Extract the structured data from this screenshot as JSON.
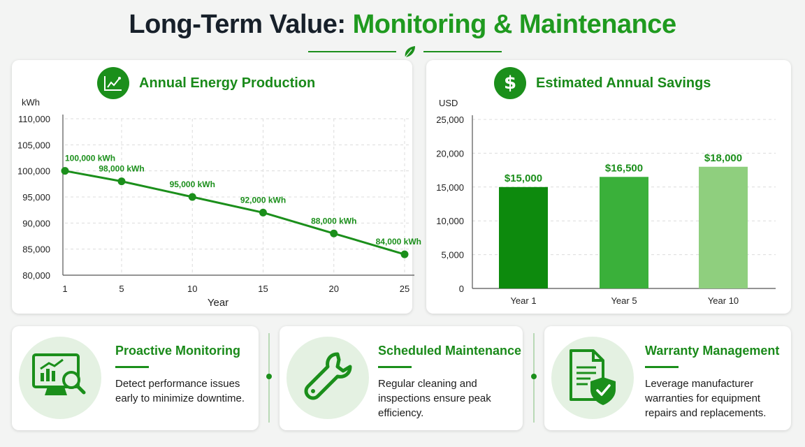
{
  "title": {
    "part1": "Long-Term Value:",
    "part2": "Monitoring & Maintenance"
  },
  "colors": {
    "accent": "#1b8f1b",
    "dark_text": "#17202a",
    "bar1": "#0d8a0d",
    "bar2": "#3ab03a",
    "bar3": "#8fcf7e"
  },
  "energy_card": {
    "title": "Annual Energy Production",
    "icon": "line-chart-icon"
  },
  "savings_card": {
    "title": "Estimated Annual Savings",
    "icon": "dollar-icon"
  },
  "features": [
    {
      "title": "Proactive Monitoring",
      "text": "Detect performance issues early to minimize downtime.",
      "icon": "monitor-magnifier-icon"
    },
    {
      "title": "Scheduled Maintenance",
      "text": "Regular cleaning and inspections ensure peak efficiency.",
      "icon": "wrench-icon"
    },
    {
      "title": "Warranty Management",
      "text": "Leverage manufacturer warranties for equipment repairs and replacements.",
      "icon": "document-shield-icon"
    }
  ],
  "chart_data": [
    {
      "type": "line",
      "title": "Annual Energy Production",
      "xlabel": "Year",
      "ylabel": "kWh",
      "x": [
        1,
        5,
        10,
        15,
        20,
        25
      ],
      "y": [
        100000,
        98000,
        95000,
        92000,
        88000,
        84000
      ],
      "point_labels": [
        "100,000 kWh",
        "98,000 kWh",
        "95,000 kWh",
        "92,000 kWh",
        "88,000 kWh",
        "84,000 kWh"
      ],
      "ylim": [
        80000,
        110000
      ],
      "yticks": [
        "80,000",
        "85,000",
        "90,000",
        "95,000",
        "100,000",
        "105,000",
        "110,000"
      ],
      "xticks": [
        "1",
        "5",
        "10",
        "15",
        "20",
        "25"
      ],
      "grid": true
    },
    {
      "type": "bar",
      "title": "Estimated Annual Savings",
      "xlabel": "",
      "ylabel": "USD",
      "categories": [
        "Year 1",
        "Year 5",
        "Year 10"
      ],
      "values": [
        15000,
        16500,
        18000
      ],
      "value_labels": [
        "$15,000",
        "$16,500",
        "$18,000"
      ],
      "ylim": [
        0,
        25000
      ],
      "yticks": [
        "0",
        "5,000",
        "10,000",
        "15,000",
        "20,000",
        "25,000"
      ],
      "grid": true
    }
  ]
}
